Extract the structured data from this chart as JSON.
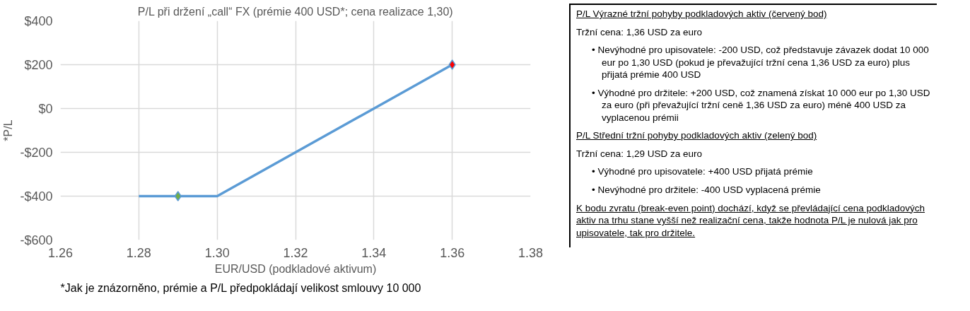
{
  "chart_data": [
    {
      "type": "line",
      "title": "P/L při držení „call“ FX (prémie 400 USD*; cena realizace 1,30)",
      "xlabel": "EUR/USD (podkladové aktivum)",
      "ylabel": "*P/L",
      "xlim": [
        1.26,
        1.38
      ],
      "xticks": [
        {
          "value": 1.26,
          "label": "1.26"
        },
        {
          "value": 1.28,
          "label": "1.28"
        },
        {
          "value": 1.3,
          "label": "1.30"
        },
        {
          "value": 1.32,
          "label": "1.32"
        },
        {
          "value": 1.34,
          "label": "1.34"
        },
        {
          "value": 1.36,
          "label": "1.36"
        },
        {
          "value": 1.38,
          "label": "1.38"
        }
      ],
      "ylim": [
        -600,
        400
      ],
      "yticks": [
        {
          "value": 400,
          "label": "$400"
        },
        {
          "value": 200,
          "label": "$200"
        },
        {
          "value": 0,
          "label": "$0"
        },
        {
          "value": -200,
          "label": "-$200"
        },
        {
          "value": -400,
          "label": "-$400"
        },
        {
          "value": -600,
          "label": "-$600"
        }
      ],
      "grid": true,
      "marker": "none",
      "line_style": "solid",
      "series": [
        {
          "type": "line",
          "color": "#5b9bd5",
          "x": [
            1.28,
            1.3,
            1.36
          ],
          "values": [
            -400,
            -400,
            200
          ]
        },
        {
          "type": "scatter",
          "marker": "diamond",
          "color": "#70ad47",
          "x": [
            1.29
          ],
          "values": [
            -400
          ]
        },
        {
          "type": "scatter",
          "marker": "diamond",
          "color": "#ff0000",
          "x": [
            1.36
          ],
          "values": [
            200
          ]
        }
      ],
      "annotations": [
        "*Jak je znázorněno, prémie a P/L předpokládají velikost smlouvy 10 000"
      ]
    },
    {
      "type": "other",
      "annotations": [
        "P/L Výrazné tržní pohyby podkladových aktiv (červený bod)",
        "Tržní cena: 1,36 USD za euro",
        "• Nevýhodné pro upisovatele: -200 USD, což představuje závazek dodat 10 000 eur po 1,30 USD (pokud je převažující tržní cena 1,36 USD za euro) plus přijatá prémie 400 USD",
        "• Výhodné pro držitele: +200 USD, což znamená získat 10 000 eur po 1,30 USD za euro (při převažující tržní ceně 1,36 USD za euro) méně 400 USD za vyplacenou prémii",
        "P/L Střední tržní pohyby podkladových aktiv (zelený bod)",
        "Tržní cena: 1,29 USD za euro",
        "• Výhodné pro upisovatele: +400 USD přijatá prémie",
        "• Nevýhodné pro držitele: -400 USD vyplacená prémie",
        "K bodu zvratu (break-even point) dochází, když se převládající cena podkladových aktiv na trhu stane vyšší než realizační cena, takže hodnota P/L je nulová jak pro upisovatele, tak pro držitele."
      ]
    }
  ]
}
